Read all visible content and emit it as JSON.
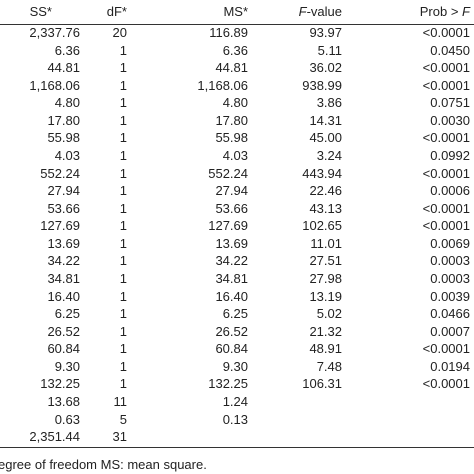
{
  "table": {
    "header": [
      [
        "SS*"
      ],
      [
        "dF*"
      ],
      [
        "MS*"
      ],
      [
        "F",
        "-value"
      ],
      [
        "Prob > ",
        "F"
      ]
    ],
    "header_italic": [
      [
        false
      ],
      [
        false
      ],
      [
        false
      ],
      [
        true,
        false
      ],
      [
        false,
        true
      ]
    ],
    "rows": [
      [
        "2,337.76",
        "20",
        "116.89",
        "93.97",
        "<0.0001"
      ],
      [
        "6.36",
        "1",
        "6.36",
        "5.11",
        "0.0450"
      ],
      [
        "44.81",
        "1",
        "44.81",
        "36.02",
        "<0.0001"
      ],
      [
        "1,168.06",
        "1",
        "1,168.06",
        "938.99",
        "<0.0001"
      ],
      [
        "4.80",
        "1",
        "4.80",
        "3.86",
        "0.0751"
      ],
      [
        "17.80",
        "1",
        "17.80",
        "14.31",
        "0.0030"
      ],
      [
        "55.98",
        "1",
        "55.98",
        "45.00",
        "<0.0001"
      ],
      [
        "4.03",
        "1",
        "4.03",
        "3.24",
        "0.0992"
      ],
      [
        "552.24",
        "1",
        "552.24",
        "443.94",
        "<0.0001"
      ],
      [
        "27.94",
        "1",
        "27.94",
        "22.46",
        "0.0006"
      ],
      [
        "53.66",
        "1",
        "53.66",
        "43.13",
        "<0.0001"
      ],
      [
        "127.69",
        "1",
        "127.69",
        "102.65",
        "<0.0001"
      ],
      [
        "13.69",
        "1",
        "13.69",
        "11.01",
        "0.0069"
      ],
      [
        "34.22",
        "1",
        "34.22",
        "27.51",
        "0.0003"
      ],
      [
        "34.81",
        "1",
        "34.81",
        "27.98",
        "0.0003"
      ],
      [
        "16.40",
        "1",
        "16.40",
        "13.19",
        "0.0039"
      ],
      [
        "6.25",
        "1",
        "6.25",
        "5.02",
        "0.0466"
      ],
      [
        "26.52",
        "1",
        "26.52",
        "21.32",
        "0.0007"
      ],
      [
        "60.84",
        "1",
        "60.84",
        "48.91",
        "<0.0001"
      ],
      [
        "9.30",
        "1",
        "9.30",
        "7.48",
        "0.0194"
      ],
      [
        "132.25",
        "1",
        "132.25",
        "106.31",
        "<0.0001"
      ],
      [
        "13.68",
        "11",
        "1.24",
        null,
        null
      ],
      [
        "0.63",
        "5",
        "0.13",
        null,
        null
      ],
      [
        "2,351.44",
        "31",
        null,
        null,
        null
      ]
    ],
    "footnote": "egree of freedom MS: mean square."
  }
}
